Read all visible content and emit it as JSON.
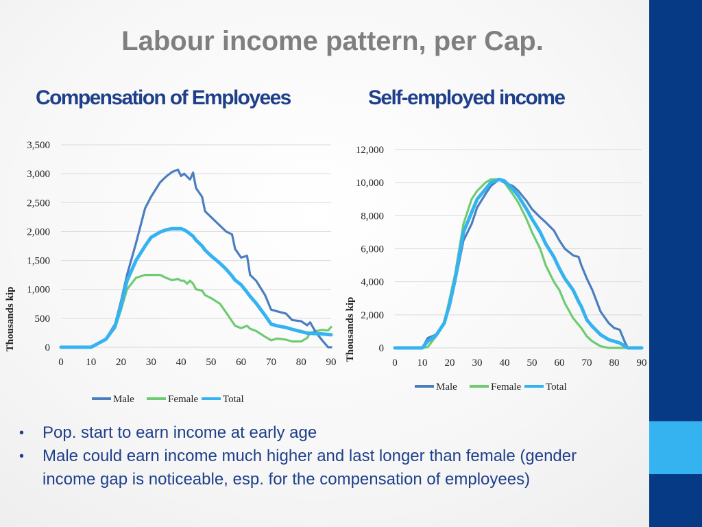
{
  "slide": {
    "title": "Labour income pattern, per Cap.",
    "bullets": [
      "Pop. start to earn income at early age",
      "Male could earn income much higher and last longer than female (gender income gap is noticeable, esp. for the compensation of employees)"
    ]
  },
  "colors": {
    "male": "#4a7ebf",
    "female": "#6ecb72",
    "total": "#35b3f0",
    "heading": "#1e3f8a",
    "sidebar": "#063a84",
    "sidebar_accent": "#35b3f0"
  },
  "chart_data": [
    {
      "type": "line",
      "heading": "Compensation of Employees",
      "ylabel": "Thousands kip",
      "xlabel": "",
      "xlim": [
        0,
        90
      ],
      "ylim": [
        0,
        3500
      ],
      "x_ticks": [
        0,
        10,
        20,
        30,
        40,
        50,
        60,
        70,
        80,
        90
      ],
      "y_ticks": [
        0,
        500,
        1000,
        1500,
        2000,
        2500,
        3000,
        3500
      ],
      "y_tick_labels": [
        "0",
        "500",
        "1,000",
        "1,500",
        "2,000",
        "2,500",
        "3,000",
        "3,500"
      ],
      "grid": true,
      "legend_position": "bottom",
      "x": [
        0,
        5,
        10,
        12,
        15,
        18,
        20,
        22,
        25,
        28,
        30,
        33,
        35,
        37,
        39,
        40,
        41,
        42,
        43,
        44,
        45,
        47,
        48,
        50,
        53,
        55,
        57,
        58,
        60,
        62,
        63,
        65,
        68,
        70,
        72,
        75,
        77,
        80,
        82,
        83,
        85,
        87,
        89,
        90
      ],
      "series": [
        {
          "name": "Male",
          "values": [
            0,
            0,
            0,
            60,
            150,
            400,
            800,
            1250,
            1800,
            2400,
            2600,
            2850,
            2950,
            3030,
            3070,
            2960,
            3000,
            2950,
            2900,
            3020,
            2750,
            2600,
            2350,
            2250,
            2100,
            2000,
            1950,
            1700,
            1550,
            1580,
            1250,
            1150,
            900,
            650,
            620,
            580,
            470,
            450,
            380,
            430,
            250,
            120,
            0,
            0
          ]
        },
        {
          "name": "Female",
          "values": [
            0,
            0,
            0,
            55,
            130,
            330,
            650,
            1000,
            1200,
            1250,
            1250,
            1250,
            1200,
            1160,
            1180,
            1150,
            1150,
            1100,
            1150,
            1100,
            1000,
            980,
            900,
            850,
            750,
            600,
            450,
            370,
            330,
            370,
            320,
            280,
            180,
            120,
            150,
            130,
            100,
            100,
            160,
            250,
            280,
            300,
            290,
            350
          ]
        },
        {
          "name": "Total",
          "values": [
            0,
            0,
            0,
            55,
            140,
            360,
            720,
            1150,
            1500,
            1750,
            1900,
            1990,
            2030,
            2050,
            2050,
            2050,
            2030,
            2000,
            1960,
            1920,
            1850,
            1750,
            1680,
            1580,
            1450,
            1350,
            1230,
            1160,
            1080,
            950,
            880,
            760,
            550,
            400,
            370,
            340,
            310,
            270,
            245,
            240,
            235,
            230,
            220,
            215
          ]
        }
      ]
    },
    {
      "type": "line",
      "heading": "Self-employed income",
      "ylabel": "Thousands kip",
      "xlabel": "",
      "xlim": [
        0,
        90
      ],
      "ylim": [
        0,
        12000
      ],
      "x_ticks": [
        0,
        10,
        20,
        30,
        40,
        50,
        60,
        70,
        80,
        90
      ],
      "y_ticks": [
        0,
        2000,
        4000,
        6000,
        8000,
        10000,
        12000
      ],
      "y_tick_labels": [
        "0",
        "2,000",
        "4,000",
        "6,000",
        "8,000",
        "10,000",
        "12,000"
      ],
      "grid": true,
      "legend_position": "bottom",
      "x": [
        0,
        5,
        10,
        12,
        15,
        18,
        20,
        22,
        25,
        28,
        30,
        33,
        35,
        38,
        40,
        43,
        45,
        48,
        50,
        53,
        55,
        58,
        60,
        62,
        65,
        67,
        68,
        70,
        72,
        75,
        78,
        80,
        82,
        84,
        85,
        87,
        90
      ],
      "series": [
        {
          "name": "Male",
          "values": [
            0,
            0,
            0,
            600,
            800,
            1500,
            2500,
            4000,
            6500,
            7500,
            8500,
            9300,
            9800,
            10200,
            10000,
            9800,
            9500,
            8900,
            8400,
            7900,
            7600,
            7100,
            6500,
            6000,
            5600,
            5500,
            5000,
            4200,
            3500,
            2200,
            1500,
            1200,
            1100,
            300,
            0,
            0,
            0
          ]
        },
        {
          "name": "Female",
          "values": [
            0,
            0,
            0,
            50,
            700,
            1500,
            3000,
            4500,
            7500,
            9000,
            9500,
            10000,
            10200,
            10200,
            10000,
            9300,
            8800,
            7800,
            7000,
            6000,
            5000,
            4000,
            3500,
            2700,
            1800,
            1400,
            1200,
            700,
            400,
            100,
            0,
            0,
            0,
            0,
            0,
            0,
            0
          ]
        },
        {
          "name": "Total",
          "values": [
            0,
            0,
            0,
            400,
            750,
            1500,
            2700,
            4200,
            7000,
            8200,
            9000,
            9600,
            10000,
            10200,
            10100,
            9600,
            9200,
            8400,
            7800,
            7000,
            6300,
            5500,
            4800,
            4200,
            3500,
            2800,
            2500,
            1700,
            1300,
            800,
            500,
            400,
            300,
            100,
            0,
            0,
            0
          ]
        }
      ]
    }
  ]
}
